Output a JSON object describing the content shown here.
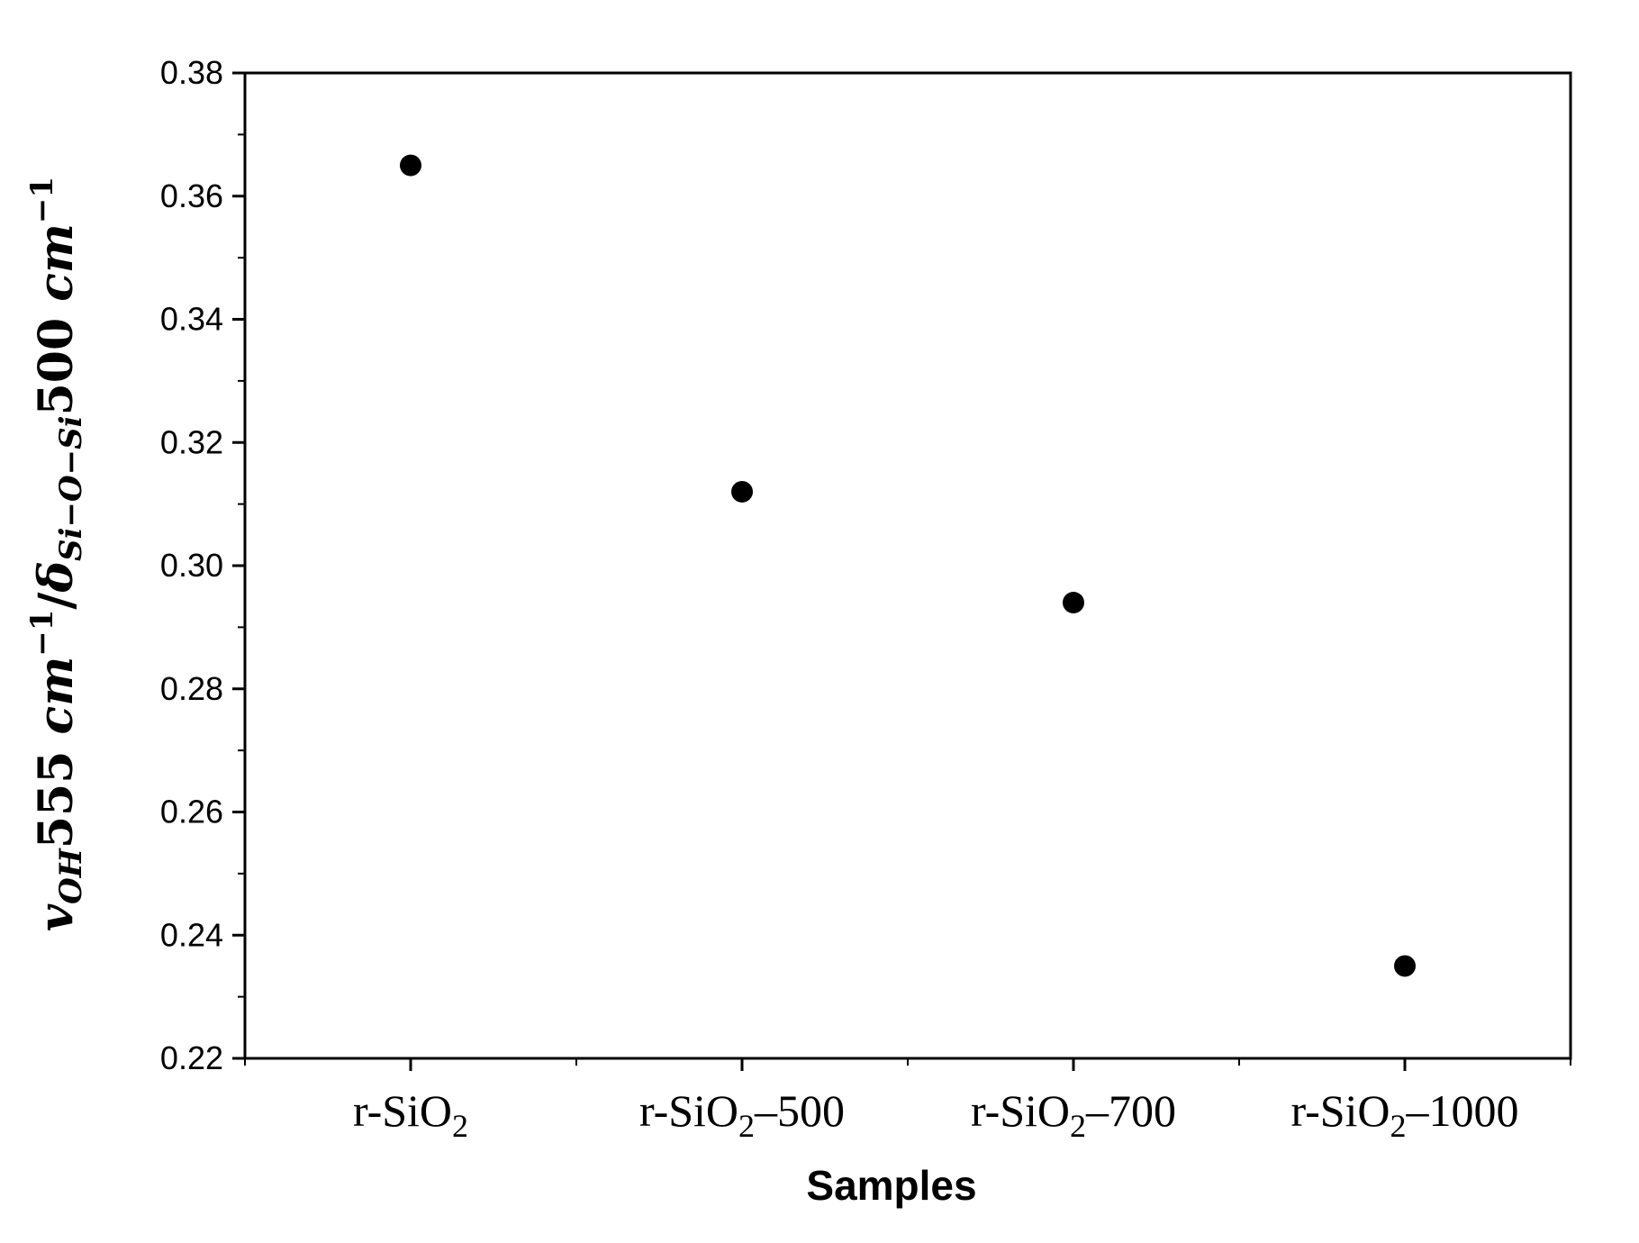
{
  "chart_data": {
    "type": "scatter",
    "title": "",
    "xlabel": "Samples",
    "ylabel": {
      "main_symbol": "v",
      "main_sub": "OH",
      "main_value": "555 ",
      "main_unit": "cm",
      "main_exp": "−1",
      "slash": "/",
      "ref_symbol": "δ",
      "ref_sub": "Si−O−Si",
      "ref_value": "500 ",
      "ref_unit": "cm",
      "ref_exp": "−1"
    },
    "categories": [
      {
        "base": "r-SiO",
        "sub": "2",
        "suffix": ""
      },
      {
        "base": "r-SiO",
        "sub": "2",
        "suffix": "–500"
      },
      {
        "base": "r-SiO",
        "sub": "2",
        "suffix": "–700"
      },
      {
        "base": "r-SiO",
        "sub": "2",
        "suffix": "–1000"
      }
    ],
    "values": [
      0.365,
      0.312,
      0.294,
      0.235
    ],
    "ylim": [
      0.22,
      0.38
    ],
    "yticks": [
      "0.22",
      "0.24",
      "0.26",
      "0.28",
      "0.30",
      "0.32",
      "0.34",
      "0.36",
      "0.38"
    ],
    "grid": false,
    "legend": "none",
    "marker_color": "#000000"
  }
}
